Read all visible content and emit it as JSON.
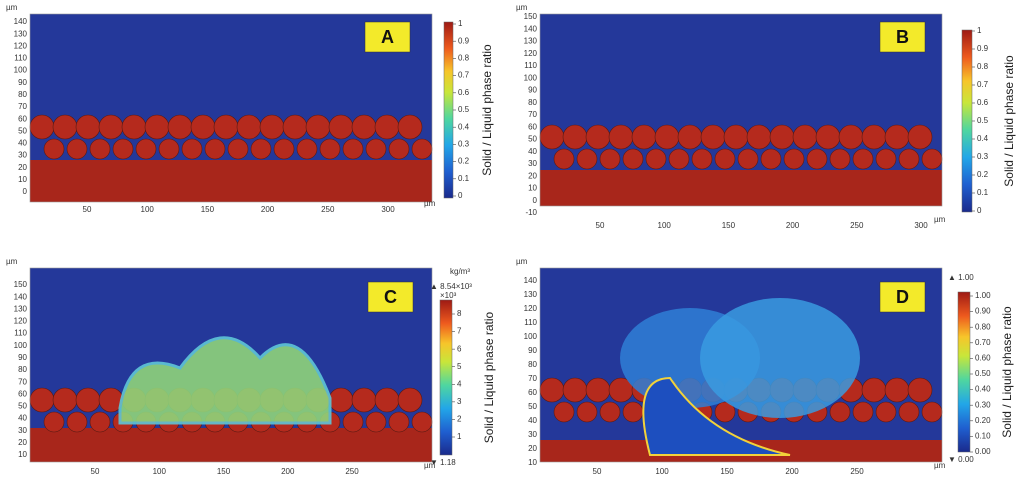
{
  "panels": [
    {
      "letter": "A",
      "y_unit": "µm",
      "x_unit": "µm",
      "y_ticks": [
        "140",
        "130",
        "120",
        "110",
        "100",
        "90",
        "80",
        "70",
        "60",
        "50",
        "40",
        "30",
        "20",
        "10",
        "0"
      ],
      "x_ticks": [
        "50",
        "100",
        "150",
        "200",
        "250",
        "300"
      ],
      "colorbar": {
        "title": "Solid / Liquid phase ratio",
        "ticks": [
          "1",
          "0.9",
          "0.8",
          "0.7",
          "0.6",
          "0.5",
          "0.4",
          "0.3",
          "0.2",
          "0.1",
          "0"
        ]
      }
    },
    {
      "letter": "B",
      "y_unit": "µm",
      "x_unit": "µm",
      "y_ticks": [
        "150",
        "140",
        "130",
        "120",
        "110",
        "100",
        "90",
        "80",
        "70",
        "60",
        "50",
        "40",
        "30",
        "20",
        "10",
        "0",
        "-10"
      ],
      "x_ticks": [
        "50",
        "100",
        "150",
        "200",
        "250",
        "300"
      ],
      "colorbar": {
        "title": "Solid / Liquid phase ratio",
        "ticks": [
          "1",
          "0.9",
          "0.8",
          "0.7",
          "0.6",
          "0.5",
          "0.4",
          "0.3",
          "0.2",
          "0.1",
          "0"
        ]
      }
    },
    {
      "letter": "C",
      "y_unit": "µm",
      "x_unit": "µm",
      "y_ticks": [
        "150",
        "140",
        "130",
        "120",
        "110",
        "100",
        "90",
        "80",
        "70",
        "60",
        "50",
        "40",
        "30",
        "20",
        "10"
      ],
      "x_ticks": [
        "50",
        "100",
        "150",
        "200",
        "250"
      ],
      "colorbar": {
        "title": "Solid / Liquid phase ratio",
        "unit": "kg/m³",
        "max_note": "▲ 8.54×10³",
        "scale": "×10³",
        "min_note": "▼ 1.18",
        "ticks": [
          "8",
          "7",
          "6",
          "5",
          "4",
          "3",
          "2",
          "1"
        ]
      }
    },
    {
      "letter": "D",
      "y_unit": "µm",
      "x_unit": "µm",
      "y_ticks": [
        "140",
        "130",
        "120",
        "110",
        "100",
        "90",
        "80",
        "70",
        "60",
        "50",
        "40",
        "30",
        "20",
        "10"
      ],
      "x_ticks": [
        "50",
        "100",
        "150",
        "200",
        "250"
      ],
      "colorbar": {
        "title": "Solid / Liquid phase ratio",
        "max_note": "▲ 1.00",
        "min_note": "▼ 0.00",
        "ticks": [
          "1.00",
          "0.90",
          "0.80",
          "0.70",
          "0.60",
          "0.50",
          "0.40",
          "0.30",
          "0.20",
          "0.10",
          "0.00"
        ]
      }
    }
  ]
}
